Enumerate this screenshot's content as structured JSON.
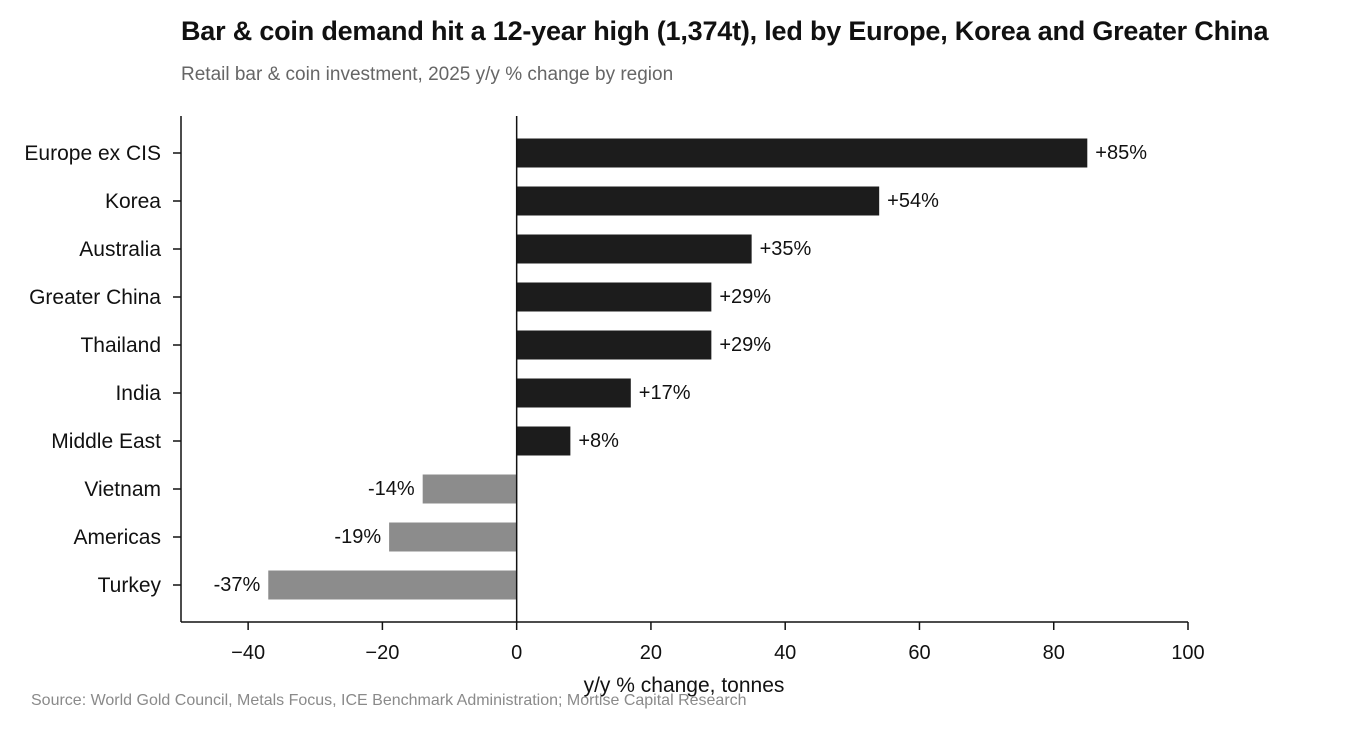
{
  "title": "Bar & coin demand hit a 12-year high (1,374t), led by Europe, Korea and Greater China",
  "subtitle": "Retail bar & coin investment, 2025 y/y % change by region",
  "source": "Source: World Gold Council, Metals Focus, ICE Benchmark Administration; Mortise Capital Research",
  "colors": {
    "positive": "#1c1c1c",
    "negative": "#8c8c8c",
    "axis": "#111111"
  },
  "chart_data": {
    "type": "bar",
    "orientation": "horizontal",
    "categories": [
      "Europe ex CIS",
      "Korea",
      "Australia",
      "Greater China",
      "Thailand",
      "India",
      "Middle East",
      "Vietnam",
      "Americas",
      "Turkey"
    ],
    "values": [
      85,
      54,
      35,
      29,
      29,
      17,
      8,
      -14,
      -19,
      -37
    ],
    "data_labels": [
      "+85%",
      "+54%",
      "+35%",
      "+29%",
      "+29%",
      "+17%",
      "+8%",
      "-14%",
      "-19%",
      "-37%"
    ],
    "xlabel": "y/y % change, tonnes",
    "ylabel": "",
    "xlim": [
      -50,
      100
    ],
    "xticks": [
      -40,
      -20,
      0,
      20,
      40,
      60,
      80,
      100
    ],
    "xtick_labels": [
      "−40",
      "−20",
      "0",
      "20",
      "40",
      "60",
      "80",
      "100"
    ],
    "grid": false,
    "legend": "none"
  }
}
